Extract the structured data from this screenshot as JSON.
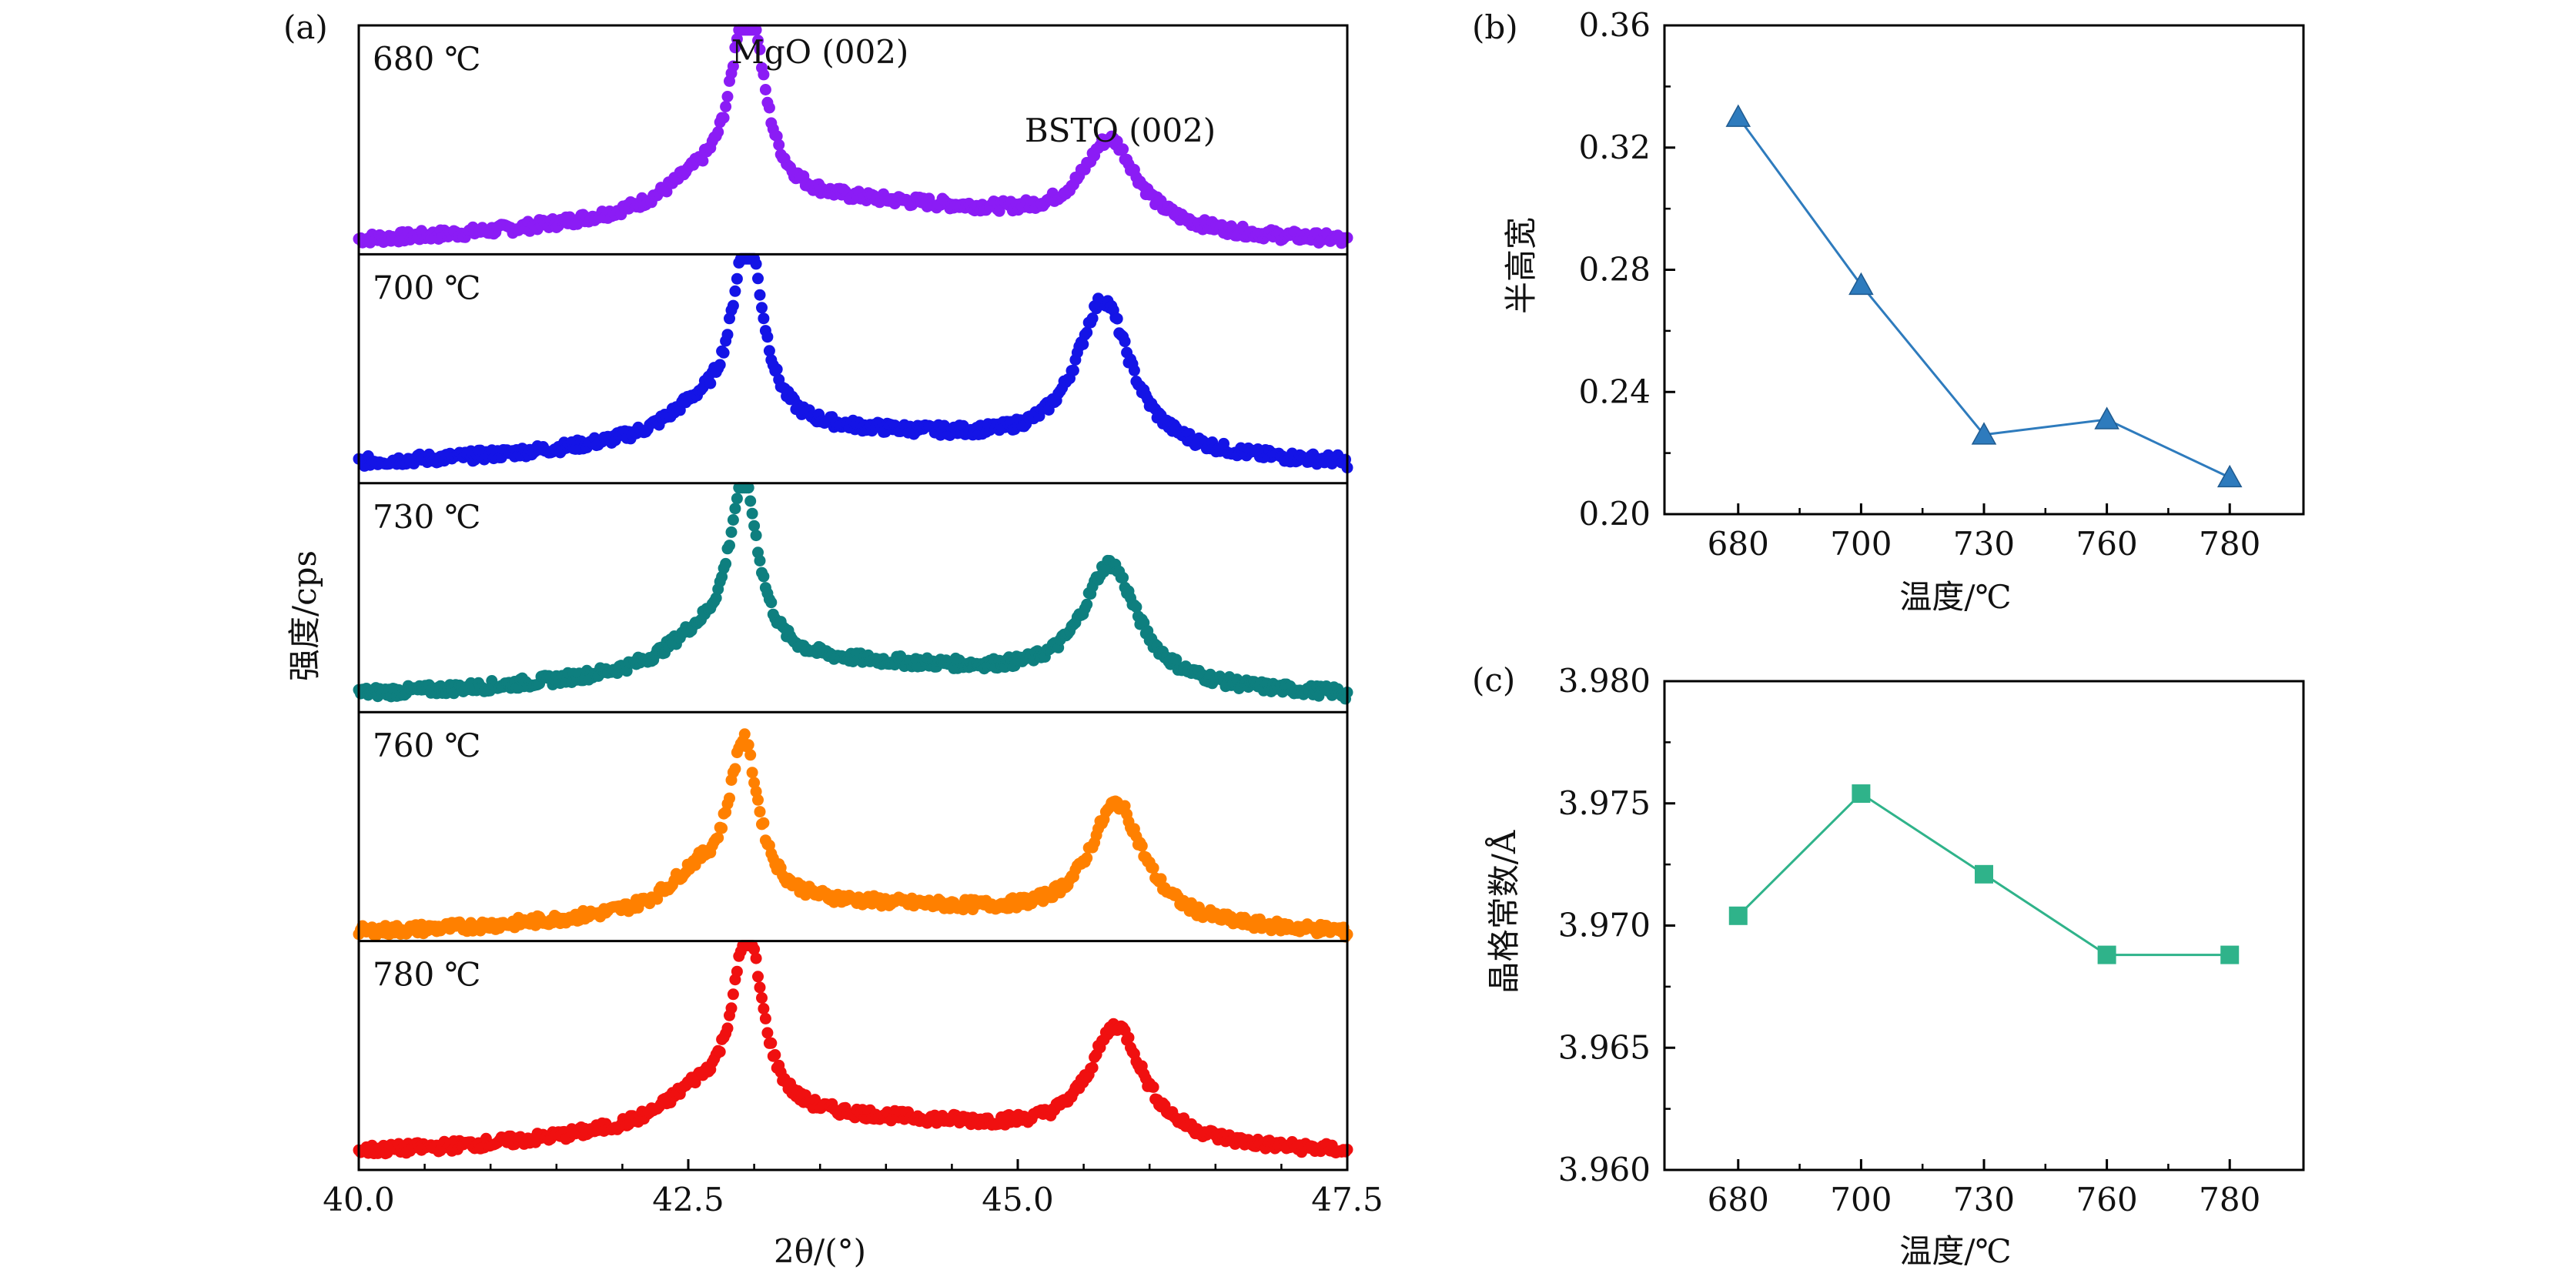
{
  "chart_data": [
    {
      "panel": "(a)",
      "type": "scatter",
      "xlabel": "2θ/(°)",
      "ylabel": "强度/cps",
      "xlim": [
        40.0,
        47.5
      ],
      "xticks": [
        "40.0",
        "42.5",
        "45.0",
        "47.5"
      ],
      "annotations": [
        "MgO (002)",
        "BSTO (002)"
      ],
      "series": [
        {
          "name": "680 ℃",
          "color": "#8b1cf5",
          "baseline": 0.05,
          "shoulder": [
            0.3,
            42.55,
            0.3
          ],
          "peak1": [
            0.93,
            42.95,
            0.14
          ],
          "peak2": [
            0.38,
            45.7,
            0.25
          ],
          "wide_bg": [
            0.28,
            43.6,
            1.6
          ]
        },
        {
          "name": "700 ℃",
          "color": "#1414e6",
          "baseline": 0.08,
          "shoulder": [
            0.3,
            42.55,
            0.3
          ],
          "peak1": [
            0.86,
            42.95,
            0.14
          ],
          "peak2": [
            0.66,
            45.65,
            0.25
          ],
          "wide_bg": [
            0.22,
            43.6,
            1.6
          ]
        },
        {
          "name": "730 ℃",
          "color": "#0e7f7f",
          "baseline": 0.07,
          "shoulder": [
            0.32,
            42.55,
            0.3
          ],
          "peak1": [
            0.78,
            42.92,
            0.14
          ],
          "peak2": [
            0.52,
            45.7,
            0.25
          ],
          "wide_bg": [
            0.22,
            43.6,
            1.6
          ]
        },
        {
          "name": "760 ℃",
          "color": "#ff8000",
          "baseline": 0.03,
          "shoulder": [
            0.38,
            42.55,
            0.25
          ],
          "peak1": [
            0.7,
            42.92,
            0.14
          ],
          "peak2": [
            0.52,
            45.75,
            0.25
          ],
          "wide_bg": [
            0.2,
            43.6,
            1.6
          ]
        },
        {
          "name": "780 ℃",
          "color": "#f01010",
          "baseline": 0.07,
          "shoulder": [
            0.35,
            42.55,
            0.3
          ],
          "peak1": [
            0.8,
            42.95,
            0.14
          ],
          "peak2": [
            0.5,
            45.75,
            0.25
          ],
          "wide_bg": [
            0.24,
            43.6,
            1.6
          ]
        }
      ]
    },
    {
      "panel": "(b)",
      "type": "line",
      "xlabel": "温度/℃",
      "ylabel": "半高宽",
      "categories": [
        "680",
        "700",
        "730",
        "760",
        "780"
      ],
      "values": [
        0.33,
        0.275,
        0.226,
        0.231,
        0.212
      ],
      "ylim": [
        0.2,
        0.36
      ],
      "yticks": [
        "0.20",
        "0.24",
        "0.28",
        "0.32",
        "0.36"
      ],
      "marker": "triangle",
      "color": "#2e7bbd"
    },
    {
      "panel": "(c)",
      "type": "line",
      "xlabel": "温度/℃",
      "ylabel": "晶格常数/Å",
      "categories": [
        "680",
        "700",
        "730",
        "760",
        "780"
      ],
      "values": [
        3.9704,
        3.9754,
        3.9721,
        3.9688,
        3.9688
      ],
      "ylim": [
        3.96,
        3.98
      ],
      "yticks": [
        "3.960",
        "3.965",
        "3.970",
        "3.975",
        "3.980"
      ],
      "marker": "square",
      "color": "#2fb38a"
    }
  ]
}
